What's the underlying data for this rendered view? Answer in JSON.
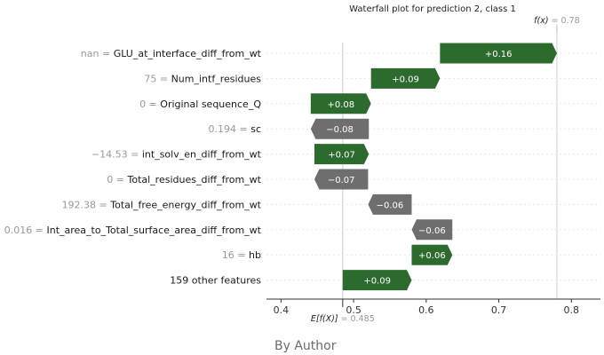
{
  "chart_data": {
    "type": "waterfall",
    "title": "Waterfall plot for prediction 2, class 1",
    "fx_label": "f(x)",
    "fx_value": "0.78",
    "ex_label": "E[f(X)]",
    "ex_value": "0.485",
    "base_value": 0.485,
    "final_value": 0.78,
    "xlim": [
      0.38,
      0.84
    ],
    "xticks": [
      {
        "value": 0.4,
        "label": "0.4"
      },
      {
        "value": 0.5,
        "label": "0.5"
      },
      {
        "value": 0.6,
        "label": "0.6"
      },
      {
        "value": 0.7,
        "label": "0.7"
      },
      {
        "value": 0.8,
        "label": "0.8"
      }
    ],
    "colors": {
      "positive": "#2d6a2d",
      "negative": "#6e6e6e",
      "bar_text": "#ffffff"
    },
    "features": [
      {
        "value_label": "nan",
        "name": "GLU_at_interface_diff_from_wt",
        "start": 0.619,
        "end": 0.78,
        "contribution_label": "+0.16",
        "sign": 1
      },
      {
        "value_label": "75",
        "name": "Num_intf_residues",
        "start": 0.524,
        "end": 0.619,
        "contribution_label": "+0.09",
        "sign": 1
      },
      {
        "value_label": "0",
        "name": "Original sequence_Q",
        "start": 0.441,
        "end": 0.524,
        "contribution_label": "+0.08",
        "sign": 1
      },
      {
        "value_label": "0.194",
        "name": "sc",
        "start": 0.521,
        "end": 0.441,
        "contribution_label": "−0.08",
        "sign": -1
      },
      {
        "value_label": "−14.53",
        "name": "int_solv_en_diff_from_wt",
        "start": 0.446,
        "end": 0.521,
        "contribution_label": "+0.07",
        "sign": 1
      },
      {
        "value_label": "0",
        "name": "Total_residues_diff_from_wt",
        "start": 0.52,
        "end": 0.446,
        "contribution_label": "−0.07",
        "sign": -1
      },
      {
        "value_label": "192.38",
        "name": "Total_free_energy_diff_from_wt",
        "start": 0.58,
        "end": 0.52,
        "contribution_label": "−0.06",
        "sign": -1
      },
      {
        "value_label": "0.016",
        "name": "Int_area_to_Total_surface_area_diff_from_wt",
        "start": 0.636,
        "end": 0.58,
        "contribution_label": "−0.06",
        "sign": -1
      },
      {
        "value_label": "16",
        "name": "hb",
        "start": 0.58,
        "end": 0.636,
        "contribution_label": "+0.06",
        "sign": 1
      },
      {
        "value_label": "",
        "name": "159 other features",
        "start": 0.485,
        "end": 0.58,
        "contribution_label": "+0.09",
        "sign": 1
      }
    ]
  },
  "caption": "By Author"
}
